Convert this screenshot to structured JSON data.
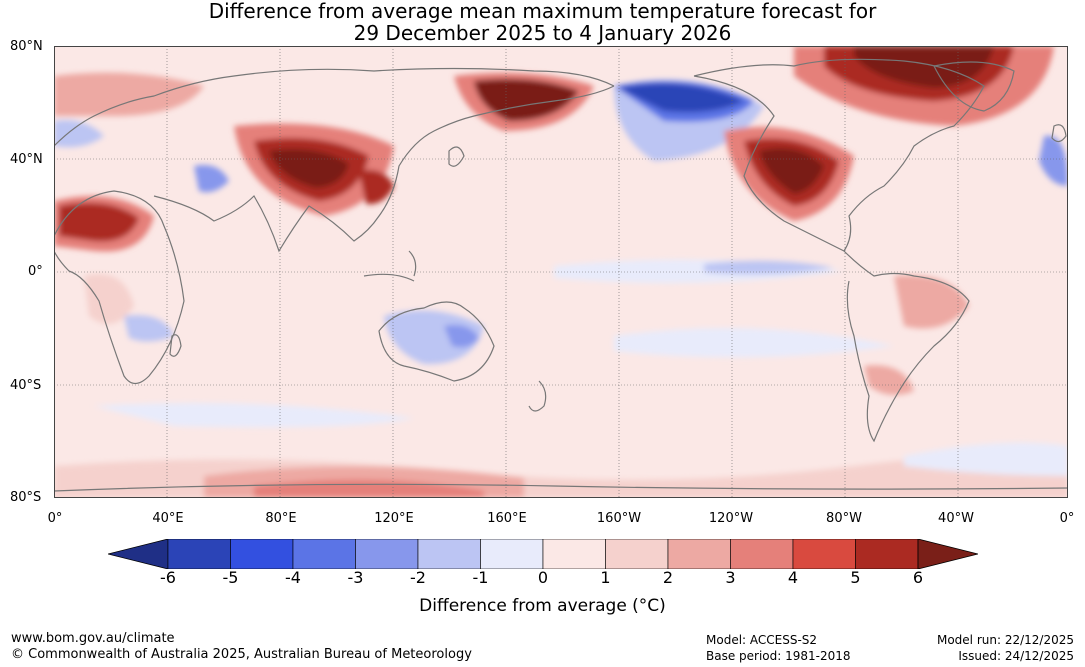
{
  "title": {
    "line1": "Difference from average mean maximum temperature forecast for",
    "line2": "29 December 2025 to 4 January 2026"
  },
  "lat_labels": [
    "80°N",
    "40°N",
    "0°",
    "40°S",
    "80°S"
  ],
  "lon_labels": [
    "0°",
    "40°E",
    "80°E",
    "120°E",
    "160°E",
    "160°W",
    "120°W",
    "80°W",
    "40°W",
    "0°"
  ],
  "colorbar": {
    "ticks": [
      "-6",
      "-5",
      "-4",
      "-3",
      "-2",
      "-1",
      "0",
      "1",
      "2",
      "3",
      "4",
      "5",
      "6"
    ],
    "colors": [
      "#1f2f86",
      "#2b44b7",
      "#3350e0",
      "#5b74e6",
      "#8797ec",
      "#bcc5f3",
      "#e8ebfb",
      "#fbe8e6",
      "#f5d1cd",
      "#eda9a3",
      "#e5807a",
      "#d94a3f",
      "#ab2a22",
      "#7a1f18"
    ],
    "label": "Difference from average (°C)"
  },
  "footer": {
    "website": "www.bom.gov.au/climate",
    "copyright": "© Commonwealth of Australia 2025, Australian Bureau of Meteorology",
    "model": "Model: ACCESS-S2",
    "base_period": "Base period: 1981-2018",
    "model_run": "Model run: 22/12/2025",
    "issued": "Issued: 24/12/2025"
  }
}
